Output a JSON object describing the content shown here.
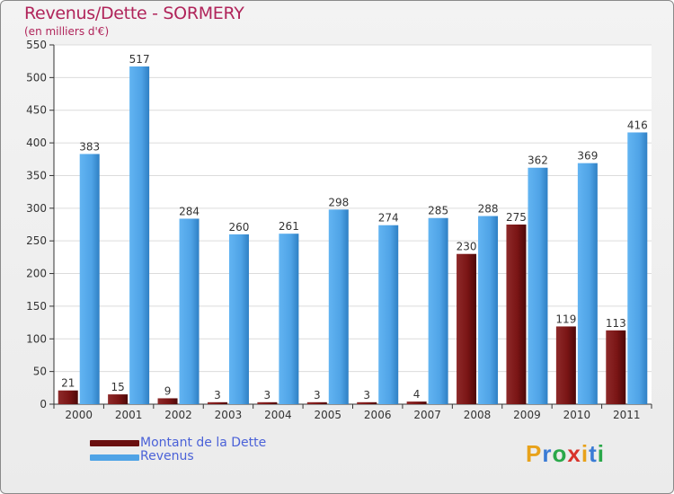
{
  "chart_data": {
    "type": "bar",
    "title": "Revenus/Dette - SORMERY",
    "subtitle": "(en milliers d'€)",
    "categories": [
      "2000",
      "2001",
      "2002",
      "2003",
      "2004",
      "2005",
      "2006",
      "2007",
      "2008",
      "2009",
      "2010",
      "2011"
    ],
    "series": [
      {
        "name": "Montant de la Dette",
        "color": "#7a1515",
        "values": [
          21,
          15,
          9,
          3,
          3,
          3,
          3,
          4,
          230,
          275,
          119,
          113
        ]
      },
      {
        "name": "Revenus",
        "color": "#4fa3e6",
        "values": [
          383,
          517,
          284,
          260,
          261,
          298,
          274,
          285,
          288,
          362,
          369,
          416
        ]
      }
    ],
    "yticks": [
      0,
      50,
      100,
      150,
      200,
      250,
      300,
      350,
      400,
      450,
      500,
      550
    ],
    "ylim": [
      0,
      550
    ],
    "grid": true,
    "legend_position": "bottom-left"
  },
  "logo": {
    "text": "Proxiti",
    "letters": [
      "P",
      "r",
      "o",
      "x",
      "i",
      "t",
      "i"
    ],
    "colors": [
      "#e8a21a",
      "#3a7bd5",
      "#2aa84a",
      "#d8332a",
      "#e8a21a",
      "#3a7bd5",
      "#2aa84a"
    ]
  }
}
